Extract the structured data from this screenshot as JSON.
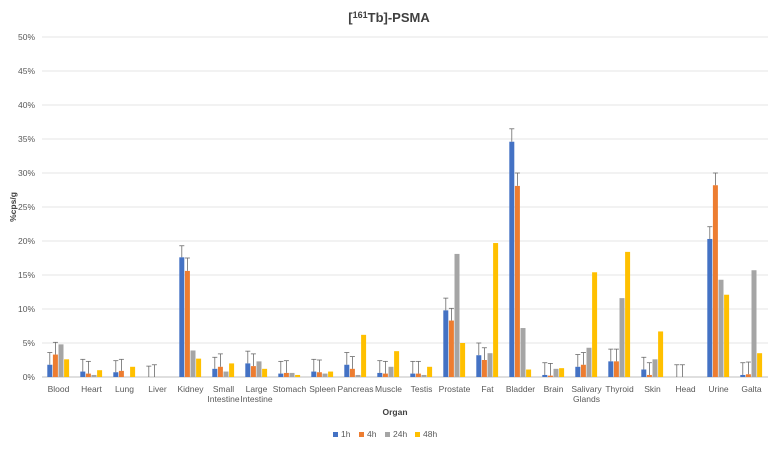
{
  "chart_data": {
    "type": "bar",
    "title_prefix": "[",
    "title_sup": "161",
    "title_suffix": "Tb]-PSMA",
    "xlabel": "Organ",
    "ylabel": "%cps/g",
    "ylim": [
      0,
      50
    ],
    "yticks": [
      "0%",
      "5%",
      "10%",
      "15%",
      "20%",
      "25%",
      "30%",
      "35%",
      "40%",
      "45%",
      "50%"
    ],
    "grid": true,
    "legend_position": "bottom",
    "categories": [
      [
        "Blood"
      ],
      [
        "Heart"
      ],
      [
        "Lung"
      ],
      [
        "Liver"
      ],
      [
        "Kidney"
      ],
      [
        "Small",
        "Intestine"
      ],
      [
        "Large",
        "Intestine"
      ],
      [
        "Stomach"
      ],
      [
        "Spleen"
      ],
      [
        "Pancreas"
      ],
      [
        "Muscle"
      ],
      [
        "Testis"
      ],
      [
        "Prostate"
      ],
      [
        "Fat"
      ],
      [
        "Bladder"
      ],
      [
        "Brain"
      ],
      [
        "Salivary",
        "Glands"
      ],
      [
        "Thyroid"
      ],
      [
        "Skin"
      ],
      [
        "Head"
      ],
      [
        "Urine"
      ],
      [
        "Galta"
      ]
    ],
    "series": [
      {
        "name": "1h",
        "color": "#4472c4",
        "values": [
          1.8,
          0.8,
          0.7,
          0.0,
          17.6,
          1.2,
          2.0,
          0.5,
          0.8,
          1.8,
          0.6,
          0.5,
          9.8,
          3.2,
          34.6,
          0.3,
          1.5,
          2.3,
          1.1,
          0.0,
          20.3,
          0.3
        ],
        "errors": [
          1.8,
          1.8,
          1.7,
          1.6,
          1.7,
          1.7,
          1.8,
          1.8,
          1.8,
          1.8,
          1.8,
          1.8,
          1.8,
          1.8,
          1.9,
          1.8,
          1.8,
          1.8,
          1.8,
          1.8,
          1.8,
          1.8
        ]
      },
      {
        "name": "4h",
        "color": "#ed7d31",
        "values": [
          3.3,
          0.5,
          0.9,
          0.0,
          15.6,
          1.5,
          1.6,
          0.6,
          0.7,
          1.2,
          0.5,
          0.5,
          8.3,
          2.5,
          28.1,
          0.2,
          1.8,
          2.3,
          0.3,
          0.0,
          28.2,
          0.4
        ],
        "errors": [
          1.8,
          1.8,
          1.7,
          1.8,
          1.9,
          1.9,
          1.8,
          1.8,
          1.8,
          1.8,
          1.8,
          1.8,
          1.8,
          1.8,
          1.9,
          1.8,
          1.8,
          1.8,
          1.8,
          1.8,
          1.8,
          1.8
        ]
      },
      {
        "name": "24h",
        "color": "#a5a5a5",
        "values": [
          4.8,
          0.3,
          0.0,
          0.0,
          3.9,
          0.8,
          2.3,
          0.6,
          0.5,
          0.3,
          1.5,
          0.3,
          18.1,
          3.5,
          7.2,
          1.2,
          4.3,
          11.6,
          2.6,
          0.0,
          14.3,
          15.7
        ],
        "errors": []
      },
      {
        "name": "48h",
        "color": "#ffc000",
        "values": [
          2.6,
          1.0,
          1.5,
          0.0,
          2.7,
          2.0,
          1.2,
          0.3,
          0.8,
          6.2,
          3.8,
          1.5,
          5.0,
          19.7,
          1.1,
          1.3,
          15.4,
          18.4,
          6.7,
          0.0,
          12.1,
          3.5
        ],
        "errors": []
      }
    ]
  }
}
